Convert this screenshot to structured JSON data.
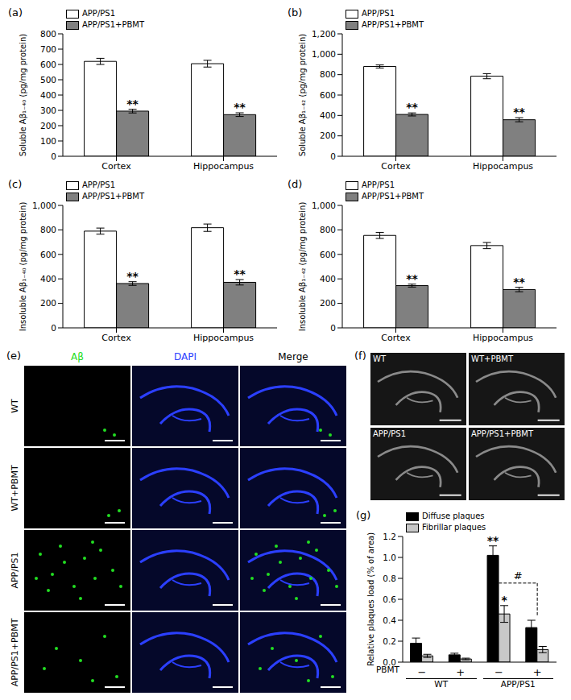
{
  "chart_data": [
    {
      "panel": "(a)",
      "type": "bar",
      "ylabel": "Soluble Aβ₁₋₄₀ (pg/mg protein)",
      "categories": [
        "Cortex",
        "Hippocampus"
      ],
      "series": [
        {
          "name": "APP/PS1",
          "color": "#ffffff",
          "values": [
            620,
            605
          ],
          "errors": [
            20,
            22
          ],
          "significance": [
            null,
            null
          ]
        },
        {
          "name": "APP/PS1+PBMT",
          "color": "#808080",
          "values": [
            295,
            272
          ],
          "errors": [
            12,
            12
          ],
          "significance": [
            "**",
            "**"
          ]
        }
      ],
      "ylim": [
        0,
        800
      ],
      "yticks": [
        0,
        100,
        200,
        300,
        400,
        500,
        600,
        700,
        800
      ],
      "legend": "upper left"
    },
    {
      "panel": "(b)",
      "type": "bar",
      "ylabel": "Soluble Aβ₁₋₄₂ (pg/mg protein)",
      "categories": [
        "Cortex",
        "Hippocampus"
      ],
      "series": [
        {
          "name": "APP/PS1",
          "color": "#ffffff",
          "values": [
            880,
            785
          ],
          "errors": [
            15,
            25
          ],
          "significance": [
            null,
            null
          ]
        },
        {
          "name": "APP/PS1+PBMT",
          "color": "#808080",
          "values": [
            410,
            358
          ],
          "errors": [
            15,
            20
          ],
          "significance": [
            "**",
            "**"
          ]
        }
      ],
      "ylim": [
        0,
        1200
      ],
      "yticks": [
        0,
        200,
        400,
        600,
        800,
        {
          "value": 1000,
          "label": "1,000"
        },
        {
          "value": 1200,
          "label": "1,200"
        }
      ],
      "legend": "upper left"
    },
    {
      "panel": "(c)",
      "type": "bar",
      "ylabel": "Insoluble Aβ₁₋₄₀ (pg/mg protein)",
      "categories": [
        "Cortex",
        "Hippocampus"
      ],
      "series": [
        {
          "name": "APP/PS1",
          "color": "#ffffff",
          "values": [
            790,
            818
          ],
          "errors": [
            25,
            30
          ],
          "significance": [
            null,
            null
          ]
        },
        {
          "name": "APP/PS1+PBMT",
          "color": "#808080",
          "values": [
            362,
            372
          ],
          "errors": [
            15,
            22
          ],
          "significance": [
            "**",
            "**"
          ]
        }
      ],
      "ylim": [
        0,
        1000
      ],
      "yticks": [
        0,
        200,
        400,
        600,
        800,
        {
          "value": 1000,
          "label": "1,000"
        }
      ],
      "legend": "upper left"
    },
    {
      "panel": "(d)",
      "type": "bar",
      "ylabel": "Insoluble Aβ₁₋₄₂ (pg/mg protein)",
      "categories": [
        "Cortex",
        "Hippocampus"
      ],
      "series": [
        {
          "name": "APP/PS1",
          "color": "#ffffff",
          "values": [
            755,
            672
          ],
          "errors": [
            25,
            25
          ],
          "significance": [
            null,
            null
          ]
        },
        {
          "name": "APP/PS1+PBMT",
          "color": "#808080",
          "values": [
            345,
            313
          ],
          "errors": [
            12,
            18
          ],
          "significance": [
            "**",
            "**"
          ]
        }
      ],
      "ylim": [
        0,
        1000
      ],
      "yticks": [
        0,
        200,
        400,
        600,
        800,
        {
          "value": 1000,
          "label": "1,000"
        }
      ],
      "legend": "upper left"
    },
    {
      "panel": "(g)",
      "type": "bar",
      "ylabel": "Relative plaques load (% of area)",
      "categories": [
        "−",
        "+",
        "−",
        "+"
      ],
      "x_label": "PBMT",
      "groups": [
        {
          "label": "WT",
          "span": [
            0,
            1
          ]
        },
        {
          "label": "APP/PS1",
          "span": [
            2,
            3
          ]
        }
      ],
      "series": [
        {
          "name": "Diffuse plaques",
          "color": "#000000",
          "values": [
            0.18,
            0.07,
            1.02,
            0.33
          ],
          "errors": [
            0.05,
            0.015,
            0.09,
            0.07
          ],
          "significance": [
            null,
            null,
            "**",
            null
          ]
        },
        {
          "name": "Fibrillar plaques",
          "color": "#c8c8c8",
          "values": [
            0.06,
            0.03,
            0.46,
            0.12
          ],
          "errors": [
            0.015,
            0.008,
            0.08,
            0.03
          ],
          "significance": [
            null,
            null,
            "*",
            null
          ]
        }
      ],
      "comparisons": [
        {
          "from": 2,
          "to": 3,
          "label": "#"
        }
      ],
      "ylim": [
        0,
        1.2
      ],
      "yticks": [
        {
          "value": 0,
          "label": "0.0"
        },
        0.2,
        0.4,
        0.6,
        0.8,
        {
          "value": 1,
          "label": "1.0"
        },
        1.2
      ],
      "legend": "upper left"
    }
  ],
  "images": [
    {
      "panel": "(e)",
      "columns": [
        {
          "label": "Aβ",
          "color": "#22dd22"
        },
        {
          "label": "DAPI",
          "color": "#2b3fff"
        },
        {
          "label": "Merge",
          "color": "#000000"
        }
      ],
      "rows": [
        "WT",
        "WT+PBMT",
        "APP/PS1",
        "APP/PS1+PBMT"
      ]
    },
    {
      "panel": "(f)",
      "cells": [
        "WT",
        "WT+PBMT",
        "APP/PS1",
        "APP/PS1+PBMT"
      ]
    }
  ]
}
